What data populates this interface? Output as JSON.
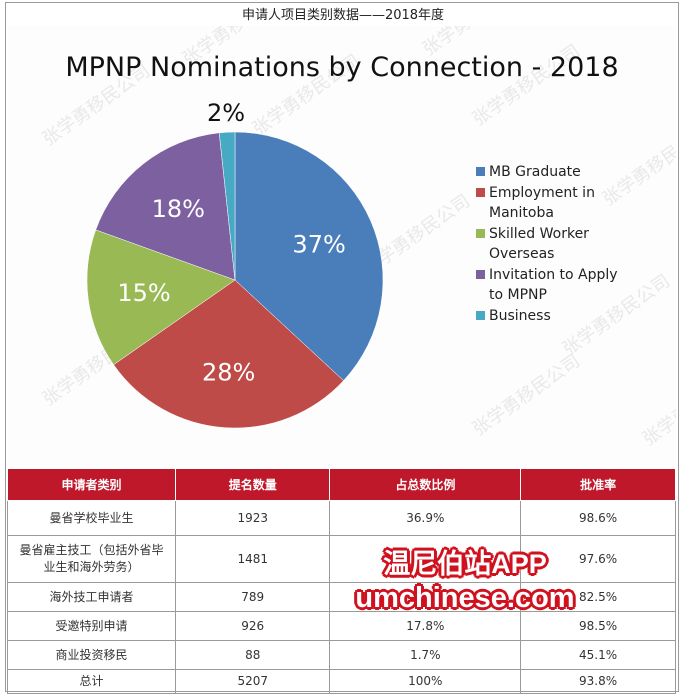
{
  "header": {
    "caption": "申请人项目类别数据——2018年度"
  },
  "chart_data": {
    "type": "pie",
    "title": "MPNP Nominations by Connection - 2018",
    "slices": [
      {
        "name": "MB Graduate",
        "label": "37%",
        "value": 36.9,
        "color": "#4a7ebb"
      },
      {
        "name": "Employment in Manitoba",
        "label": "28%",
        "value": 28.4,
        "color": "#be4b48"
      },
      {
        "name": "Skilled Worker Overseas",
        "label": "15%",
        "value": 15.2,
        "color": "#98b954"
      },
      {
        "name": "Invitation to Apply to MPNP",
        "label": "18%",
        "value": 17.8,
        "color": "#7d60a0"
      },
      {
        "name": "Business",
        "label": "2%",
        "value": 1.7,
        "color": "#46aac5"
      }
    ],
    "legend_lines": [
      [
        "MB Graduate"
      ],
      [
        "Employment in",
        "Manitoba"
      ],
      [
        "Skilled Worker",
        "Overseas"
      ],
      [
        "Invitation to Apply",
        "to MPNP"
      ],
      [
        "Business"
      ]
    ],
    "legend_position": "right"
  },
  "table": {
    "headers": [
      "申请者类别",
      "提名数量",
      "占总数比例",
      "批准率"
    ],
    "rows": [
      {
        "cat": [
          "曼省学校毕业生"
        ],
        "count": "1923",
        "share": "36.9%",
        "rate": "98.6%"
      },
      {
        "cat": [
          "曼省雇主技工（包括外省毕",
          "业生和海外劳务）"
        ],
        "count": "1481",
        "share": "",
        "rate": "97.6%"
      },
      {
        "cat": [
          "海外技工申请者"
        ],
        "count": "789",
        "share": "",
        "rate": "82.5%"
      },
      {
        "cat": [
          "受邀特别申请"
        ],
        "count": "926",
        "share": "17.8%",
        "rate": "98.5%"
      },
      {
        "cat": [
          "商业投资移民"
        ],
        "count": "88",
        "share": "1.7%",
        "rate": "45.1%"
      },
      {
        "cat": [
          "总计"
        ],
        "count": "5207",
        "share": "100%",
        "rate": "93.8%"
      }
    ]
  },
  "overlay": {
    "line1": "温尼伯站APP",
    "line2": "umchinese.com"
  },
  "watermark": "张学勇移民公司"
}
